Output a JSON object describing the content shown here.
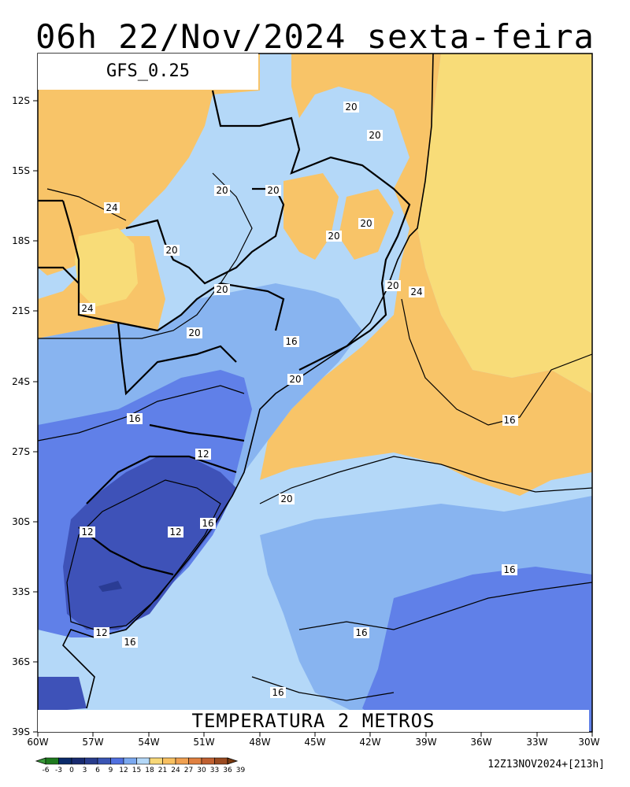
{
  "title": "06h 22/Nov/2024 sexta-feira",
  "model": "GFS_0.25",
  "variable": "TEMPERATURA 2 METROS",
  "run_info": "12Z13NOV2024+[213h]",
  "lat_labels": [
    "12S",
    "15S",
    "18S",
    "21S",
    "24S",
    "27S",
    "30S",
    "33S",
    "36S",
    "39S"
  ],
  "lon_labels": [
    "60W",
    "57W",
    "54W",
    "51W",
    "48W",
    "45W",
    "42W",
    "39W",
    "36W",
    "33W",
    "30W"
  ],
  "colorbar": {
    "ticks": [
      "-6",
      "-3",
      "0",
      "3",
      "6",
      "9",
      "12",
      "15",
      "18",
      "21",
      "24",
      "27",
      "30",
      "33",
      "36",
      "39"
    ],
    "colors": [
      "#3a9a3a",
      "#1e7a1e",
      "#0a2a6a",
      "#182a70",
      "#283c8c",
      "#3a55b4",
      "#5070e0",
      "#7aa8f0",
      "#b4d8f8",
      "#f8d878",
      "#f8c060",
      "#f0a050",
      "#e08040",
      "#c06030",
      "#9a4a20",
      "#7a3a10"
    ]
  },
  "fills": {
    "warm_yellow": "#f8dc78",
    "warm_orange": "#f8c468",
    "light_blue": "#b4d8f8",
    "mid_blue": "#88b4f0",
    "blue": "#6080e8",
    "dark_blue": "#3e52b8",
    "darker_blue": "#2a3c94"
  },
  "contour_labels": [
    "20",
    "20",
    "20",
    "20",
    "24",
    "20",
    "20",
    "20",
    "20",
    "24",
    "24",
    "20",
    "16",
    "20",
    "16",
    "12",
    "20",
    "20",
    "16",
    "12",
    "12",
    "16",
    "12",
    "16",
    "16",
    "16",
    "16"
  ]
}
